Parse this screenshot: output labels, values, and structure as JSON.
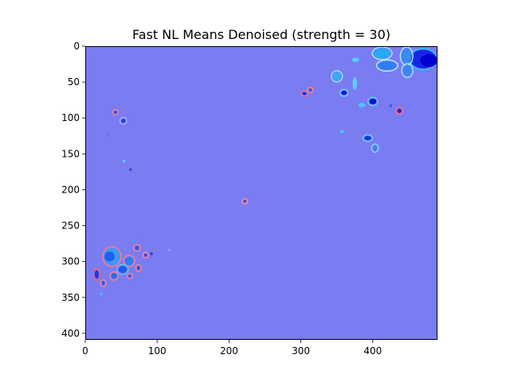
{
  "chart_data": {
    "type": "heatmap",
    "title": "Fast NL Means Denoised (strength = 30)",
    "xlabel": "",
    "ylabel": "",
    "image_size": {
      "width": 490,
      "height": 409
    },
    "xlim": [
      0,
      490
    ],
    "ylim": [
      409,
      0
    ],
    "x_ticks": [
      0,
      100,
      200,
      300,
      400
    ],
    "y_ticks": [
      0,
      50,
      100,
      150,
      200,
      250,
      300,
      350,
      400
    ],
    "grid": false,
    "legend": "none",
    "colors": {
      "background": "#7b7bf2",
      "frame": "#000000"
    },
    "features": [
      {
        "x": 470,
        "y": 18,
        "rx": 18,
        "ry": 13,
        "color": "#1428e6",
        "halo": "#1ec8ff"
      },
      {
        "x": 478,
        "y": 20,
        "rx": 12,
        "ry": 9,
        "color": "#0000d2",
        "halo": ""
      },
      {
        "x": 413,
        "y": 10,
        "rx": 12,
        "ry": 7,
        "color": "#29a8f5",
        "halo": "#9ef0ff"
      },
      {
        "x": 420,
        "y": 27,
        "rx": 13,
        "ry": 6,
        "color": "#2f7ef4",
        "halo": "#a8f2ff"
      },
      {
        "x": 447,
        "y": 14,
        "rx": 7,
        "ry": 11,
        "color": "#3a8cf0",
        "halo": "#a4eeff"
      },
      {
        "x": 448,
        "y": 34,
        "rx": 6,
        "ry": 8,
        "color": "#3d86f1",
        "halo": "#9ae8ff"
      },
      {
        "x": 376,
        "y": 19,
        "rx": 5,
        "ry": 3,
        "color": "#55d0ff",
        "halo": ""
      },
      {
        "x": 350,
        "y": 42,
        "rx": 6,
        "ry": 6,
        "color": "#3ca8f7",
        "halo": "#8deaff"
      },
      {
        "x": 375,
        "y": 52,
        "rx": 3,
        "ry": 9,
        "color": "#5ad2ff",
        "halo": ""
      },
      {
        "x": 360,
        "y": 65,
        "rx": 4,
        "ry": 3,
        "color": "#0a1ad8",
        "halo": "#68d8ff"
      },
      {
        "x": 400,
        "y": 77,
        "rx": 5,
        "ry": 4,
        "color": "#0a14d4",
        "halo": "#5ad0ff"
      },
      {
        "x": 385,
        "y": 82,
        "rx": 5,
        "ry": 3,
        "color": "#4cc8ff",
        "halo": ""
      },
      {
        "x": 437,
        "y": 90,
        "rx": 3,
        "ry": 3,
        "color": "#1a2ae0",
        "halo": "#ff7070"
      },
      {
        "x": 425,
        "y": 83,
        "rx": 2,
        "ry": 2,
        "color": "#2c5ef0",
        "halo": ""
      },
      {
        "x": 305,
        "y": 66,
        "rx": 3,
        "ry": 2,
        "color": "#1c2cd8",
        "halo": "#ff7070"
      },
      {
        "x": 313,
        "y": 61,
        "rx": 2,
        "ry": 2,
        "color": "#2a4ee8",
        "halo": "#ff8080"
      },
      {
        "x": 393,
        "y": 128,
        "rx": 5,
        "ry": 3,
        "color": "#1438e2",
        "halo": "#60d8ff"
      },
      {
        "x": 403,
        "y": 142,
        "rx": 3,
        "ry": 4,
        "color": "#4a7cf0",
        "halo": "#7ae0ff"
      },
      {
        "x": 357,
        "y": 119,
        "rx": 3,
        "ry": 2,
        "color": "#4cc4ff",
        "halo": ""
      },
      {
        "x": 42,
        "y": 92,
        "rx": 2,
        "ry": 2,
        "color": "#3242e4",
        "halo": "#ff8080"
      },
      {
        "x": 53,
        "y": 104,
        "rx": 3,
        "ry": 3,
        "color": "#2a3ee0",
        "halo": "#a0b0ff"
      },
      {
        "x": 31,
        "y": 124,
        "rx": 2,
        "ry": 2,
        "color": "#7070e8",
        "halo": ""
      },
      {
        "x": 54,
        "y": 160,
        "rx": 2,
        "ry": 2,
        "color": "#5ad2ff",
        "halo": ""
      },
      {
        "x": 63,
        "y": 172,
        "rx": 2,
        "ry": 2,
        "color": "#3a46e0",
        "halo": ""
      },
      {
        "x": 222,
        "y": 216,
        "rx": 2,
        "ry": 2,
        "color": "#3c48de",
        "halo": "#ff9090"
      },
      {
        "x": 37,
        "y": 293,
        "rx": 11,
        "ry": 12,
        "color": "#3a9cf6",
        "halo": "#ff8080"
      },
      {
        "x": 34,
        "y": 293,
        "rx": 7,
        "ry": 7,
        "color": "#1e60ee",
        "halo": ""
      },
      {
        "x": 61,
        "y": 299,
        "rx": 6,
        "ry": 6,
        "color": "#2a80f0",
        "halo": "#ff8080"
      },
      {
        "x": 52,
        "y": 311,
        "rx": 6,
        "ry": 5,
        "color": "#1e5aec",
        "halo": "#50c8ff"
      },
      {
        "x": 40,
        "y": 320,
        "rx": 4,
        "ry": 4,
        "color": "#2a6cee",
        "halo": "#ff8080"
      },
      {
        "x": 16,
        "y": 318,
        "rx": 3,
        "ry": 6,
        "color": "#2836e2",
        "halo": "#ff6060"
      },
      {
        "x": 25,
        "y": 330,
        "rx": 2,
        "ry": 3,
        "color": "#3a52e6",
        "halo": "#ff8080"
      },
      {
        "x": 22,
        "y": 345,
        "rx": 2,
        "ry": 2,
        "color": "#4ab8ff",
        "halo": ""
      },
      {
        "x": 72,
        "y": 281,
        "rx": 3,
        "ry": 3,
        "color": "#2a5cec",
        "halo": "#ff8080"
      },
      {
        "x": 67,
        "y": 271,
        "rx": 2,
        "ry": 2,
        "color": "#3aa0f8",
        "halo": ""
      },
      {
        "x": 74,
        "y": 309,
        "rx": 2,
        "ry": 3,
        "color": "#2850e8",
        "halo": "#ff8080"
      },
      {
        "x": 84,
        "y": 291,
        "rx": 2,
        "ry": 2,
        "color": "#2c3ce0",
        "halo": "#ff8080"
      },
      {
        "x": 92,
        "y": 289,
        "rx": 2,
        "ry": 2,
        "color": "#2c3ce0",
        "halo": ""
      },
      {
        "x": 62,
        "y": 320,
        "rx": 2,
        "ry": 2,
        "color": "#3a50e6",
        "halo": "#ff8080"
      },
      {
        "x": 117,
        "y": 284,
        "rx": 2,
        "ry": 1,
        "color": "#7cc4ff",
        "halo": ""
      }
    ]
  }
}
